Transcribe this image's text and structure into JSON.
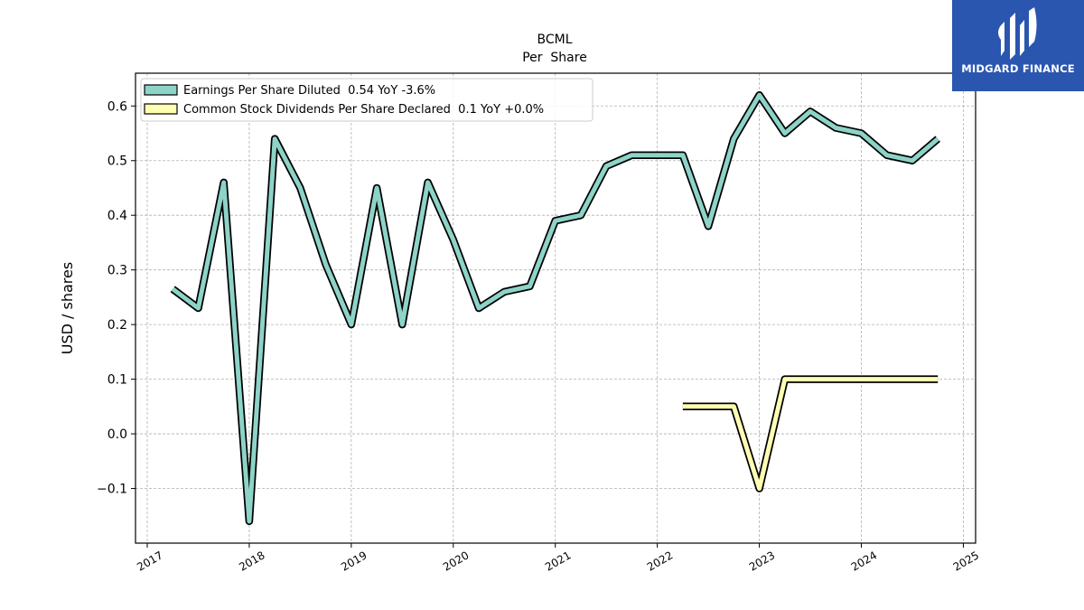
{
  "chart_data": {
    "type": "line",
    "title": "BCML",
    "subtitle": "Per  Share",
    "ylabel": "USD / shares",
    "xlabel": "",
    "ylim": [
      -0.2,
      0.66
    ],
    "xlim": [
      2016.885,
      2025.12
    ],
    "yticks": [
      -0.1,
      0.0,
      0.1,
      0.2,
      0.3,
      0.4,
      0.5,
      0.6
    ],
    "ytick_labels": [
      "−0.1",
      "0.0",
      "0.1",
      "0.2",
      "0.3",
      "0.4",
      "0.5",
      "0.6"
    ],
    "xticks": [
      2017,
      2018,
      2019,
      2020,
      2021,
      2022,
      2023,
      2024,
      2025
    ],
    "xtick_labels": [
      "2017",
      "2018",
      "2019",
      "2020",
      "2021",
      "2022",
      "2023",
      "2024",
      "2025"
    ],
    "grid": true,
    "legend_position": "top-left",
    "series": [
      {
        "name": "Earnings Per Share Diluted  0.54 YoY -3.6%",
        "color": "#8dd3c7",
        "x": [
          2017.25,
          2017.5,
          2017.75,
          2018.0,
          2018.25,
          2018.5,
          2018.75,
          2019.0,
          2019.25,
          2019.5,
          2019.75,
          2020.0,
          2020.25,
          2020.5,
          2020.75,
          2021.0,
          2021.25,
          2021.5,
          2021.75,
          2022.0,
          2022.25,
          2022.5,
          2022.75,
          2023.0,
          2023.25,
          2023.5,
          2023.75,
          2024.0,
          2024.25,
          2024.5,
          2024.75
        ],
        "y": [
          0.265,
          0.23,
          0.46,
          -0.16,
          0.54,
          0.45,
          0.31,
          0.2,
          0.45,
          0.2,
          0.46,
          0.355,
          0.23,
          0.26,
          0.27,
          0.39,
          0.4,
          0.49,
          0.51,
          0.51,
          0.51,
          0.38,
          0.54,
          0.62,
          0.55,
          0.59,
          0.56,
          0.55,
          0.51,
          0.5,
          0.54
        ]
      },
      {
        "name": "Common Stock Dividends Per Share Declared  0.1 YoY +0.0%",
        "color": "#ffffb3",
        "x": [
          2022.25,
          2022.5,
          2022.75,
          2023.0,
          2023.25,
          2023.5,
          2023.75,
          2024.0,
          2024.25,
          2024.5,
          2024.75
        ],
        "y": [
          0.05,
          0.05,
          0.05,
          -0.1,
          0.1,
          0.1,
          0.1,
          0.1,
          0.1,
          0.1,
          0.1
        ]
      }
    ]
  },
  "logo": {
    "text": "MIDGARD FINANCE",
    "background": "#2a56b0"
  }
}
